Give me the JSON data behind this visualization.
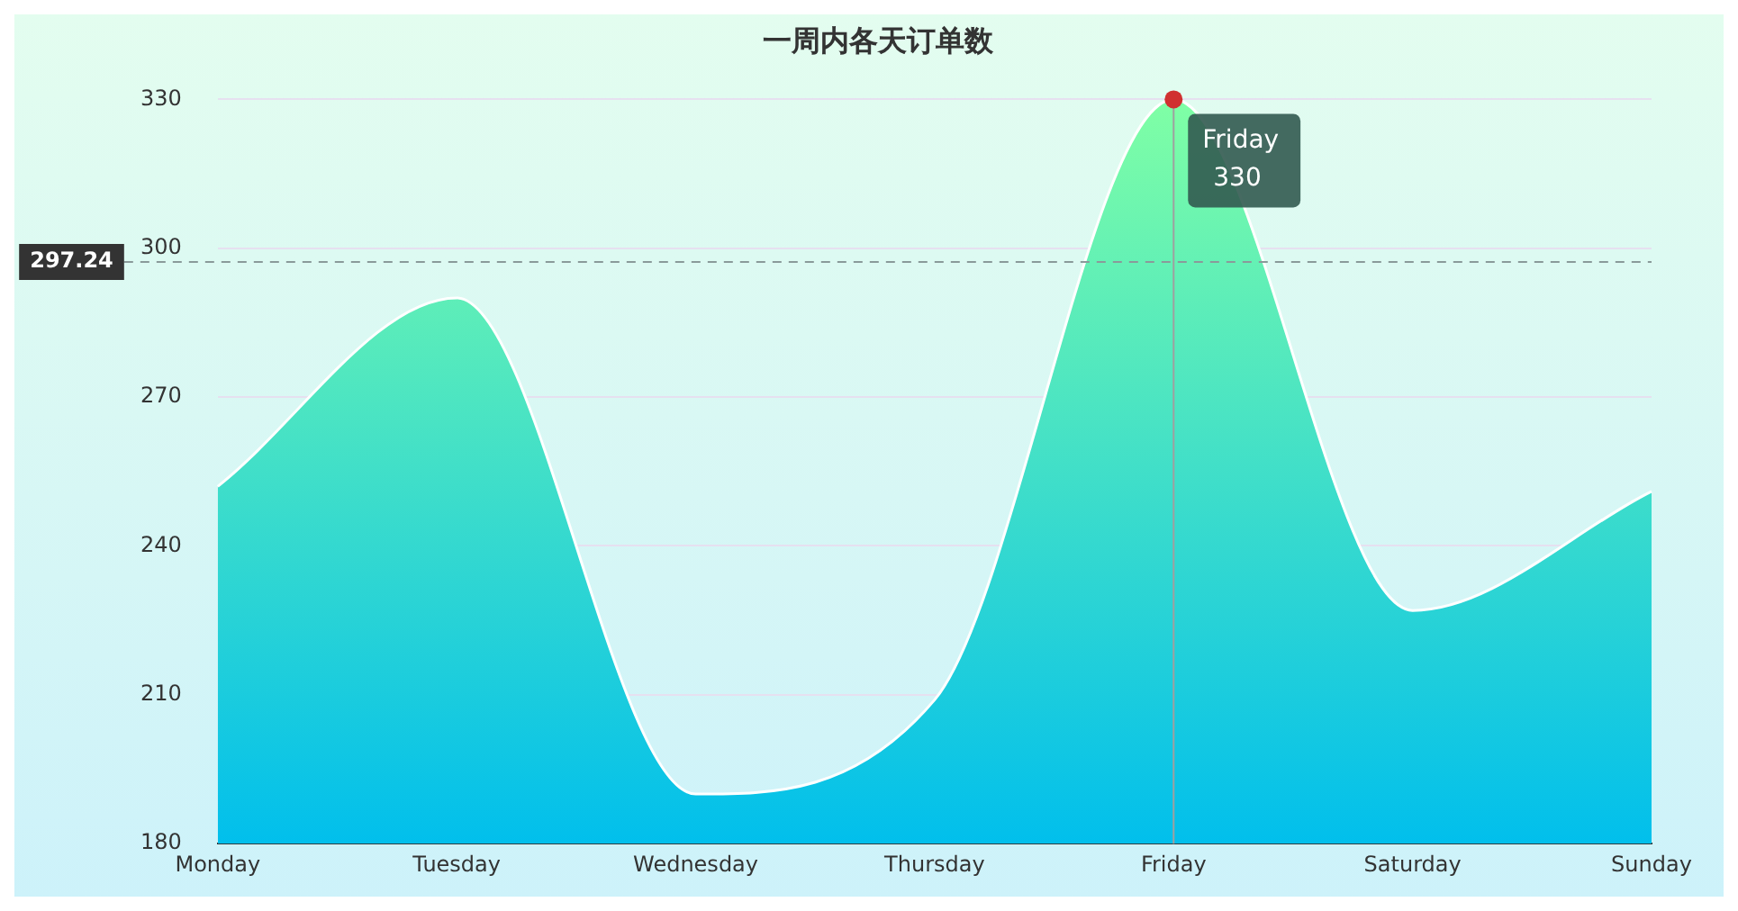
{
  "chart_data": {
    "type": "area",
    "title": "一周内各天订单数",
    "categories": [
      "Monday",
      "Tuesday",
      "Wednesday",
      "Thursday",
      "Friday",
      "Saturday",
      "Sunday"
    ],
    "series": [
      {
        "color": "#01bfec",
        "values": [
          252,
          290,
          190,
          209,
          330,
          227,
          251
        ]
      }
    ],
    "ylim": [
      180,
      330
    ],
    "yticks": [
      180,
      210,
      240,
      270,
      300,
      330
    ],
    "grid": "y",
    "legend": false,
    "marker": "none",
    "ref_lines": [
      {
        "axis": "y",
        "value": 297.24,
        "label": "297.24",
        "line_style": "dashed",
        "color": "#8a9a9a"
      },
      {
        "axis": "x",
        "value": "Friday",
        "label": null,
        "line_style": "solid",
        "color": "#a0a0a0"
      }
    ],
    "annotations": [
      {
        "text": "Friday\n330",
        "x": "Friday",
        "y": 330
      }
    ]
  }
}
